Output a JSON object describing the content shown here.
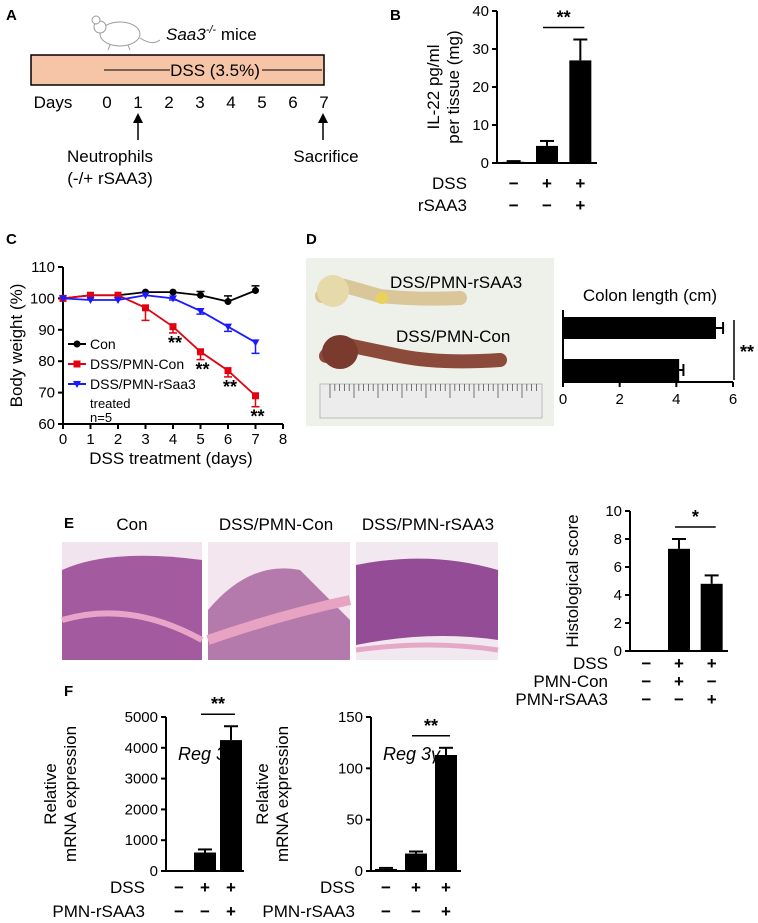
{
  "panel_letters": [
    "A",
    "B",
    "C",
    "D",
    "E",
    "F"
  ],
  "panel_a": {
    "mouse_label": "Saa3",
    "mouse_label_sup": "-/-",
    "mouse_label_rest": " mice",
    "bar_label": "DSS (3.5%)",
    "days_label": "Days",
    "days": [
      "0",
      "1",
      "2",
      "3",
      "4",
      "5",
      "6",
      "7"
    ],
    "neutrophils_label": "Neutrophils",
    "neutrophils_sub": "(-/+ rSAA3)",
    "sacrifice_label": "Sacrifice",
    "bar_color": "#f6c4a6"
  },
  "panel_d_photo": {
    "label_top": "DSS/PMN-rSAA3",
    "label_bottom": "DSS/PMN-Con"
  },
  "panel_e_photos": {
    "labels": [
      "Con",
      "DSS/PMN-Con",
      "DSS/PMN-rSAA3"
    ]
  },
  "chart_data": [
    {
      "id": "B",
      "type": "bar",
      "ylabel": "IL-22 pg/ml per tissue (mg)",
      "ylabel_lines": [
        "IL-22 pg/ml",
        "per tissue (mg)"
      ],
      "ylim": [
        0,
        40
      ],
      "yticks": [
        0,
        10,
        20,
        30,
        40
      ],
      "categories": [
        "1",
        "2",
        "3"
      ],
      "values": [
        0.3,
        4.5,
        27
      ],
      "errors": [
        0.2,
        1.3,
        5.5
      ],
      "condition_rows": [
        {
          "name": "DSS",
          "marks": [
            "−",
            "+",
            "+"
          ]
        },
        {
          "name": "rSAA3",
          "marks": [
            "−",
            "−",
            "+"
          ]
        }
      ],
      "significance": [
        {
          "between": [
            1,
            2
          ],
          "label": "**"
        }
      ]
    },
    {
      "id": "C",
      "type": "line",
      "xlabel": "DSS treatment (days)",
      "ylabel": "Body weight (%)",
      "xlim": [
        0,
        8
      ],
      "ylim": [
        60,
        110
      ],
      "xticks": [
        0,
        1,
        2,
        3,
        4,
        5,
        6,
        7,
        8
      ],
      "yticks": [
        60,
        70,
        80,
        90,
        100,
        110
      ],
      "series": [
        {
          "name": "Con",
          "color": "#000000",
          "marker": "circle",
          "x": [
            0,
            1,
            2,
            3,
            4,
            5,
            6,
            7
          ],
          "y": [
            100,
            101,
            101,
            102,
            102,
            101,
            99,
            102.5
          ],
          "err": [
            0,
            0,
            0,
            0,
            0,
            1.2,
            1.8,
            1.5
          ]
        },
        {
          "name": "DSS/PMN-Con",
          "color": "#e3000f",
          "marker": "square",
          "x": [
            0,
            1,
            2,
            3,
            4,
            5,
            6,
            7
          ],
          "y": [
            100,
            101,
            101,
            97,
            91,
            83,
            77,
            69
          ],
          "err": [
            0,
            0,
            0,
            4,
            2,
            2.5,
            2,
            3.5
          ]
        },
        {
          "name": "DSS/PMN-rSaa3",
          "color": "#1a1aff",
          "marker": "triangle-down",
          "x": [
            0,
            1,
            2,
            3,
            4,
            5,
            6,
            7
          ],
          "y": [
            100,
            99.5,
            99.5,
            101,
            100,
            96,
            91,
            86
          ],
          "err": [
            0,
            0,
            0,
            0,
            0.5,
            1,
            1.5,
            3.5
          ]
        }
      ],
      "legend_extra": [
        "treated",
        "n=5"
      ],
      "annotations": [
        {
          "x": 4,
          "label": "**"
        },
        {
          "x": 5,
          "label": "**"
        },
        {
          "x": 6,
          "label": "**"
        },
        {
          "x": 7,
          "label": "**"
        }
      ]
    },
    {
      "id": "D",
      "type": "bar",
      "orientation": "horizontal",
      "title": "Colon length (cm)",
      "xlim": [
        0,
        6
      ],
      "xticks": [
        0,
        2,
        4,
        6
      ],
      "categories": [
        "DSS/PMN-rSAA3",
        "DSS/PMN-Con"
      ],
      "values": [
        5.4,
        4.1
      ],
      "errors": [
        0.25,
        0.15
      ],
      "significance": [
        {
          "between": [
            0,
            1
          ],
          "label": "**"
        }
      ]
    },
    {
      "id": "E",
      "type": "bar",
      "ylabel": "Histological score",
      "ylim": [
        0,
        10
      ],
      "yticks": [
        0,
        2,
        4,
        6,
        8,
        10
      ],
      "categories": [
        "1",
        "2",
        "3"
      ],
      "values": [
        0,
        7.3,
        4.8
      ],
      "errors": [
        0,
        0.7,
        0.6
      ],
      "condition_rows": [
        {
          "name": "DSS",
          "marks": [
            "−",
            "+",
            "+"
          ]
        },
        {
          "name": "PMN-Con",
          "marks": [
            "−",
            "+",
            "−"
          ]
        },
        {
          "name": "PMN-rSAA3",
          "marks": [
            "−",
            "−",
            "+"
          ]
        }
      ],
      "significance": [
        {
          "between": [
            1,
            2
          ],
          "label": "*"
        }
      ]
    },
    {
      "id": "F1",
      "type": "bar",
      "ylabel": "Relative mRNA expression",
      "ylabel_lines": [
        "Relative",
        "mRNA expression"
      ],
      "gene": "Reg 3β",
      "ylim": [
        0,
        5000
      ],
      "yticks": [
        0,
        1000,
        2000,
        3000,
        4000,
        5000
      ],
      "categories": [
        "1",
        "2",
        "3"
      ],
      "values": [
        0,
        600,
        4250
      ],
      "errors": [
        0,
        100,
        450
      ],
      "condition_rows": [
        {
          "name": "DSS",
          "marks": [
            "−",
            "+",
            "+"
          ]
        },
        {
          "name": "PMN-rSAA3",
          "marks": [
            "−",
            "−",
            "+"
          ]
        }
      ],
      "significance": [
        {
          "between": [
            1,
            2
          ],
          "label": "**"
        }
      ]
    },
    {
      "id": "F2",
      "type": "bar",
      "ylabel": "Relative mRNA expression",
      "ylabel_lines": [
        "Relative",
        "mRNA expression"
      ],
      "gene": "Reg 3γ",
      "ylim": [
        0,
        150
      ],
      "yticks": [
        0,
        50,
        100,
        150
      ],
      "categories": [
        "1",
        "2",
        "3"
      ],
      "values": [
        2,
        17,
        113
      ],
      "errors": [
        1,
        2,
        7
      ],
      "condition_rows": [
        {
          "name": "DSS",
          "marks": [
            "−",
            "+",
            "+"
          ]
        },
        {
          "name": "PMN-rSAA3",
          "marks": [
            "−",
            "−",
            "+"
          ]
        }
      ],
      "significance": [
        {
          "between": [
            1,
            2
          ],
          "label": "**"
        }
      ]
    }
  ]
}
